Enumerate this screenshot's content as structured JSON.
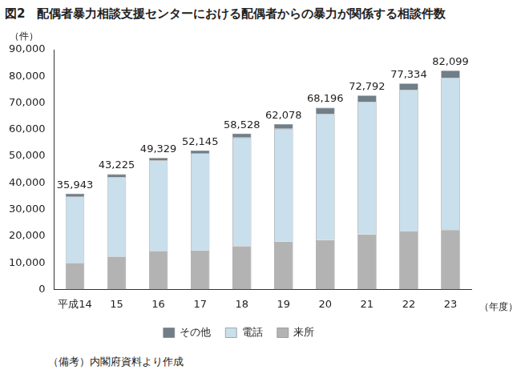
{
  "chart_data": {
    "type": "bar",
    "title": "図2　配偶者暴力相談支援センターにおける配偶者からの暴力が関係する相談件数",
    "y_label": "（件）",
    "x_label": "（年度）",
    "note": "（備考）内閣府資料より作成",
    "categories": [
      "平成14",
      "15",
      "16",
      "17",
      "18",
      "19",
      "20",
      "21",
      "22",
      "23"
    ],
    "series": [
      {
        "name": "来所",
        "color": "#b3b3b3",
        "values": [
          9900,
          12300,
          14400,
          14600,
          16200,
          17900,
          18500,
          20600,
          21800,
          22300
        ]
      },
      {
        "name": "電話",
        "color": "#c9dfeb",
        "values": [
          24900,
          29900,
          34000,
          36600,
          40800,
          42400,
          47300,
          49800,
          53000,
          57100
        ]
      },
      {
        "name": "その他",
        "color": "#6f7e88",
        "values": [
          1143,
          1025,
          929,
          945,
          1528,
          1778,
          2396,
          2392,
          2534,
          2699
        ]
      }
    ],
    "totals": [
      35943,
      43225,
      49329,
      52145,
      58528,
      62078,
      68196,
      72792,
      77334,
      82099
    ],
    "total_labels": [
      "35,943",
      "43,225",
      "49,329",
      "52,145",
      "58,528",
      "62,078",
      "68,196",
      "72,792",
      "77,334",
      "82,099"
    ],
    "ylim": [
      0,
      90000
    ],
    "yticks": [
      {
        "value": 0,
        "label": "0"
      },
      {
        "value": 10000,
        "label": "10,000"
      },
      {
        "value": 20000,
        "label": "20,000"
      },
      {
        "value": 30000,
        "label": "30,000"
      },
      {
        "value": 40000,
        "label": "40,000"
      },
      {
        "value": 50000,
        "label": "50,000"
      },
      {
        "value": 60000,
        "label": "60,000"
      },
      {
        "value": 70000,
        "label": "70,000"
      },
      {
        "value": 80000,
        "label": "80,000"
      },
      {
        "value": 90000,
        "label": "90,000"
      }
    ],
    "stacked": true,
    "grid": false,
    "legend": "bottom"
  }
}
